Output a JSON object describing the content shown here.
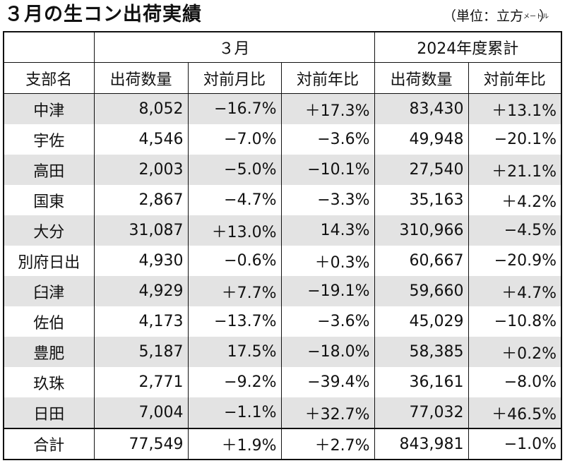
{
  "title": "３月の生コン出荷実績",
  "unit": {
    "prefix": "（単位：立方",
    "small": "メートル",
    "suffix": "）"
  },
  "header": {
    "group_month": "３月",
    "group_ytd": "2024年度累計",
    "col_branch": "支部名",
    "col_shipments": "出荷数量",
    "col_mom": "対前月比",
    "col_yoy": "対前年比",
    "col_ytd_shipments": "出荷数量",
    "col_ytd_yoy": "対前年比"
  },
  "rows": [
    {
      "name": "中津",
      "qty": "8,052",
      "mom": "−16.7%",
      "yoy": "＋17.3%",
      "ytd_qty": "83,430",
      "ytd_yoy": "＋13.1%"
    },
    {
      "name": "宇佐",
      "qty": "4,546",
      "mom": "−7.0%",
      "yoy": "−3.6%",
      "ytd_qty": "49,948",
      "ytd_yoy": "−20.1%"
    },
    {
      "name": "高田",
      "qty": "2,003",
      "mom": "−5.0%",
      "yoy": "−10.1%",
      "ytd_qty": "27,540",
      "ytd_yoy": "＋21.1%"
    },
    {
      "name": "国東",
      "qty": "2,867",
      "mom": "−4.7%",
      "yoy": "−3.3%",
      "ytd_qty": "35,163",
      "ytd_yoy": "＋4.2%"
    },
    {
      "name": "大分",
      "qty": "31,087",
      "mom": "＋13.0%",
      "yoy": "14.3%",
      "ytd_qty": "310,966",
      "ytd_yoy": "−4.5%"
    },
    {
      "name": "別府日出",
      "qty": "4,930",
      "mom": "−0.6%",
      "yoy": "＋0.3%",
      "ytd_qty": "60,667",
      "ytd_yoy": "−20.9%"
    },
    {
      "name": "臼津",
      "qty": "4,929",
      "mom": "＋7.7%",
      "yoy": "−19.1%",
      "ytd_qty": "59,660",
      "ytd_yoy": "＋4.7%"
    },
    {
      "name": "佐伯",
      "qty": "4,173",
      "mom": "−13.7%",
      "yoy": "−3.6%",
      "ytd_qty": "45,029",
      "ytd_yoy": "−10.8%"
    },
    {
      "name": "豊肥",
      "qty": "5,187",
      "mom": "17.5%",
      "yoy": "−18.0%",
      "ytd_qty": "58,385",
      "ytd_yoy": "＋0.2%"
    },
    {
      "name": "玖珠",
      "qty": "2,771",
      "mom": "−9.2%",
      "yoy": "−39.4%",
      "ytd_qty": "36,161",
      "ytd_yoy": "−8.0%"
    },
    {
      "name": "日田",
      "qty": "7,004",
      "mom": "−1.1%",
      "yoy": "＋32.7%",
      "ytd_qty": "77,032",
      "ytd_yoy": "＋46.5%"
    }
  ],
  "total": {
    "name": "合計",
    "qty": "77,549",
    "mom": "＋1.9%",
    "yoy": "＋2.7%",
    "ytd_qty": "843,981",
    "ytd_yoy": "−1.0%"
  },
  "colors": {
    "shade_row": "#e3e3e3",
    "plain_row": "#ffffff",
    "text": "#111111"
  }
}
